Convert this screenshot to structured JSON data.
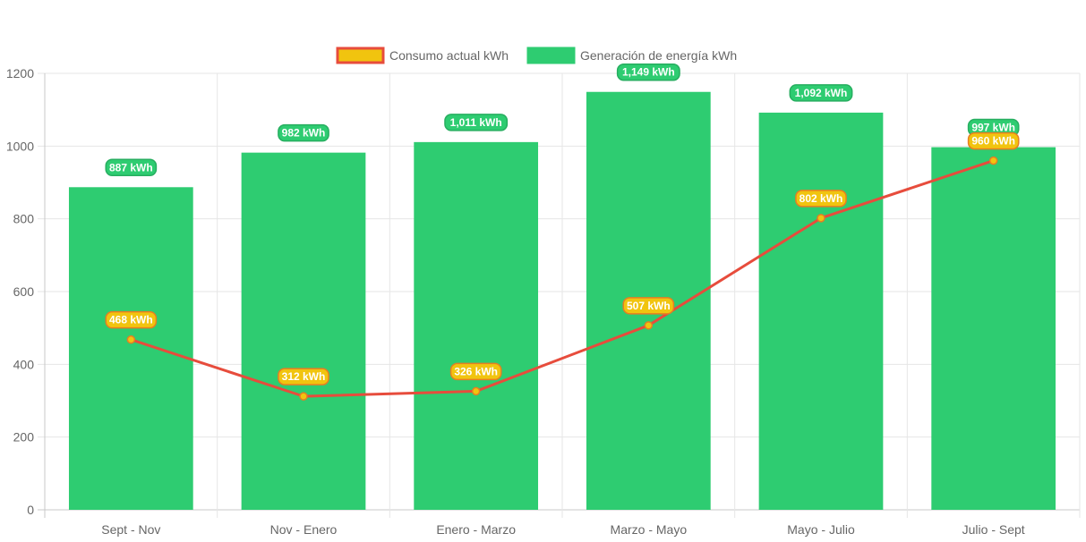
{
  "chart_data": {
    "type": "bar",
    "categories": [
      "Sept - Nov",
      "Nov - Enero",
      "Enero - Marzo",
      "Marzo - Mayo",
      "Mayo - Julio",
      "Julio - Sept"
    ],
    "ylim": [
      0,
      1200
    ],
    "yticks": [
      0,
      200,
      400,
      600,
      800,
      1000,
      1200
    ],
    "grid": true,
    "legend_position": "top-center",
    "series": [
      {
        "name": "Generación de energía kWh",
        "render": "bar",
        "color": "#2ecc71",
        "values": [
          887,
          982,
          1011,
          1149,
          1092,
          997
        ],
        "labels": [
          "887 kWh",
          "982 kWh",
          "1,011 kWh",
          "1,149 kWh",
          "1,092 kWh",
          "997 kWh"
        ]
      },
      {
        "name": "Consumo actual kWh",
        "render": "line",
        "color": "#e74c3c",
        "point_color": "#f1c40f",
        "values": [
          468,
          312,
          326,
          507,
          802,
          960
        ],
        "labels": [
          "468 kWh",
          "312 kWh",
          "326 kWh",
          "507 kWh",
          "802 kWh",
          "960 kWh"
        ]
      }
    ],
    "legend": [
      {
        "label": "Consumo actual kWh",
        "fill": "#f1c40f",
        "stroke": "#e74c3c"
      },
      {
        "label": "Generación de energía kWh",
        "fill": "#2ecc71",
        "stroke": "#2ecc71"
      }
    ]
  }
}
